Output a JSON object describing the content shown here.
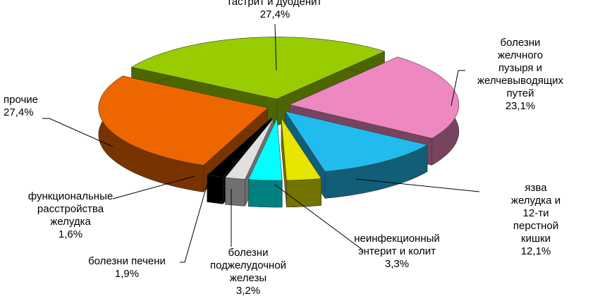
{
  "chart_data": {
    "type": "pie",
    "categories": [
      "гастрит и дуоденит",
      "болезни желчного\nпузыря и\nжелчевыводящих\nпутей",
      "язва желудка и 12-ти\nперстной кишки",
      "неинфекционный\nэнтерит и колит",
      "болезни\nподжелудочной\nжелезы",
      "болезни печени",
      "функциональные\nрасстройства\nжелудка",
      "прочие"
    ],
    "values": [
      27.4,
      23.1,
      12.1,
      3.3,
      3.2,
      1.9,
      1.6,
      27.4
    ],
    "value_labels": [
      "27,4%",
      "23,1%",
      "12,1%",
      "3,3%",
      "3,2%",
      "1,9%",
      "1,6%",
      "27,4%"
    ],
    "colors": [
      "#99cc00",
      "#ee88c0",
      "#22bbee",
      "#e6e600",
      "#00ffff",
      "#e0e0e0",
      "#000000",
      "#ee6600"
    ]
  }
}
